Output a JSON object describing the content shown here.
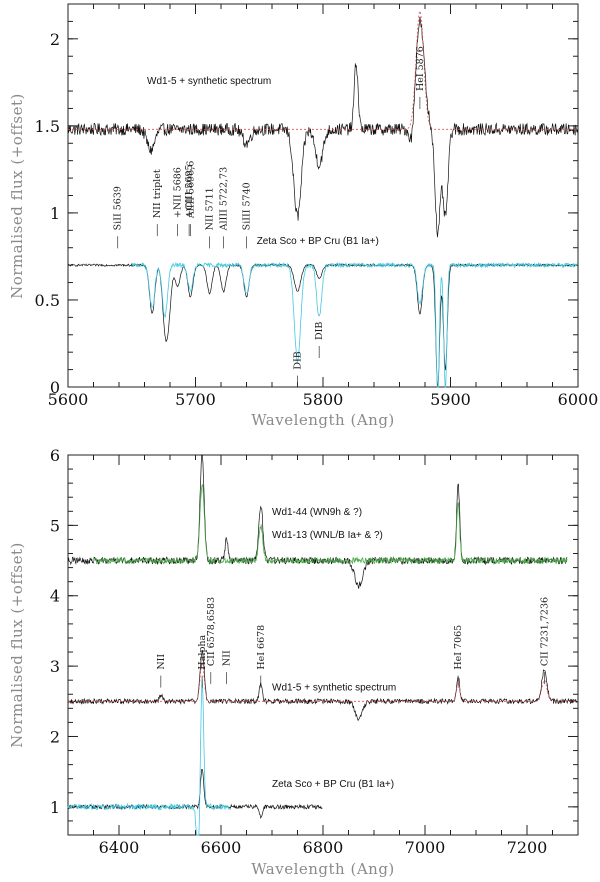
{
  "chart_data": [
    {
      "type": "line",
      "xlabel": "Wavelength (Ang)",
      "ylabel": "Normalised flux (+offset)",
      "xlim": [
        5600,
        6000
      ],
      "ylim": [
        0,
        2.2
      ],
      "xticks": [
        5600,
        5700,
        5800,
        5900,
        6000
      ],
      "yticks": [
        0,
        0.5,
        1,
        1.5,
        2
      ],
      "ytick_labels": [
        "0",
        "0.5",
        "1",
        "1.5",
        "2"
      ],
      "series": [
        {
          "name": "Wd1-5",
          "color": "#111111",
          "offset": 1.48,
          "noise": 0.035
        },
        {
          "name": "synthetic spectrum",
          "color": "#e05050",
          "offset": 1.48,
          "noise": 0.0
        },
        {
          "name": "Zeta Sco",
          "color": "#111111",
          "offset": 0.7,
          "noise": 0.006
        },
        {
          "name": "BP Cru (B1 Ia+)",
          "color": "#44c8e0",
          "offset": 0.7,
          "noise": 0.012
        }
      ],
      "annotations": [
        {
          "text": "Wd1-5 + synthetic spectrum",
          "x": 5662,
          "y": 1.74
        },
        {
          "text": "Zeta Sco + BP Cru (B1 Ia+)",
          "x": 5748,
          "y": 0.82
        }
      ],
      "line_ids": [
        {
          "text": "SiII 5639",
          "x": 5639,
          "y": 0.9
        },
        {
          "text": "NII triplet",
          "x": 5670,
          "y": 0.97
        },
        {
          "text": "+NII 5686",
          "x": 5686,
          "y": 0.97
        },
        {
          "text": "AlIII 5696,6",
          "x": 5696,
          "y": 0.97
        },
        {
          "text": "+CIII 5695",
          "x": 5695,
          "y": 0.97
        },
        {
          "text": "NII 5711",
          "x": 5711,
          "y": 0.9
        },
        {
          "text": "AlIII 5722,73",
          "x": 5722,
          "y": 0.9
        },
        {
          "text": "SiIII 5740",
          "x": 5740,
          "y": 0.9
        },
        {
          "text": "DIB",
          "x": 5780,
          "y": 0.1
        },
        {
          "text": "DIB",
          "x": 5797,
          "y": 0.27
        },
        {
          "text": "HeI 5876",
          "x": 5876,
          "y": 1.7
        }
      ]
    },
    {
      "type": "line",
      "xlabel": "Wavelength (Ang)",
      "ylabel": "Normalised flux (+offset)",
      "xlim": [
        6300,
        7300
      ],
      "ylim": [
        0.6,
        6
      ],
      "xticks": [
        6400,
        6600,
        6800,
        7000,
        7200
      ],
      "yticks": [
        1,
        2,
        3,
        4,
        5,
        6
      ],
      "ytick_labels": [
        "1",
        "2",
        "3",
        "4",
        "5",
        "6"
      ],
      "series": [
        {
          "name": "Wd1-44 (WN9h & ?)",
          "color": "#111111",
          "offset": 4.5,
          "noise": 0.05
        },
        {
          "name": "Wd1-13 (WNL/B Ia+ & ?)",
          "color": "#4caa4c",
          "offset": 4.5,
          "noise": 0.04
        },
        {
          "name": "Wd1-5",
          "color": "#111111",
          "offset": 2.5,
          "noise": 0.035
        },
        {
          "name": "synthetic spectrum",
          "color": "#e05050",
          "offset": 2.5,
          "noise": 0.0
        },
        {
          "name": "Zeta Sco",
          "color": "#111111",
          "offset": 1.0,
          "noise": 0.03
        },
        {
          "name": "BP Cru (B1 Ia+)",
          "color": "#44c8e0",
          "offset": 1.0,
          "noise": 0.04
        }
      ],
      "annotations": [
        {
          "text": "Wd1-44 (WN9h & ?)",
          "x": 6700,
          "y": 5.15
        },
        {
          "text": "Wd1-13 (WNL/B Ia+ & ?)",
          "x": 6700,
          "y": 4.82
        },
        {
          "text": "Wd1-5 + synthetic spectrum",
          "x": 6700,
          "y": 2.65
        },
        {
          "text": "Zeta Sco + BP Cru (B1 Ia+)",
          "x": 6700,
          "y": 1.28
        }
      ],
      "line_ids": [
        {
          "text": "NII",
          "x": 6482,
          "y": 2.95
        },
        {
          "text": "Halpha",
          "x": 6563,
          "y": 2.95
        },
        {
          "text": "CII 6578,6583",
          "x": 6580,
          "y": 3.0
        },
        {
          "text": "NII",
          "x": 6611,
          "y": 3.0
        },
        {
          "text": "HeI 6678",
          "x": 6678,
          "y": 2.95
        },
        {
          "text": "HeI 7065",
          "x": 7065,
          "y": 2.95
        },
        {
          "text": "CII 7231,7236",
          "x": 7234,
          "y": 3.0
        }
      ]
    }
  ]
}
